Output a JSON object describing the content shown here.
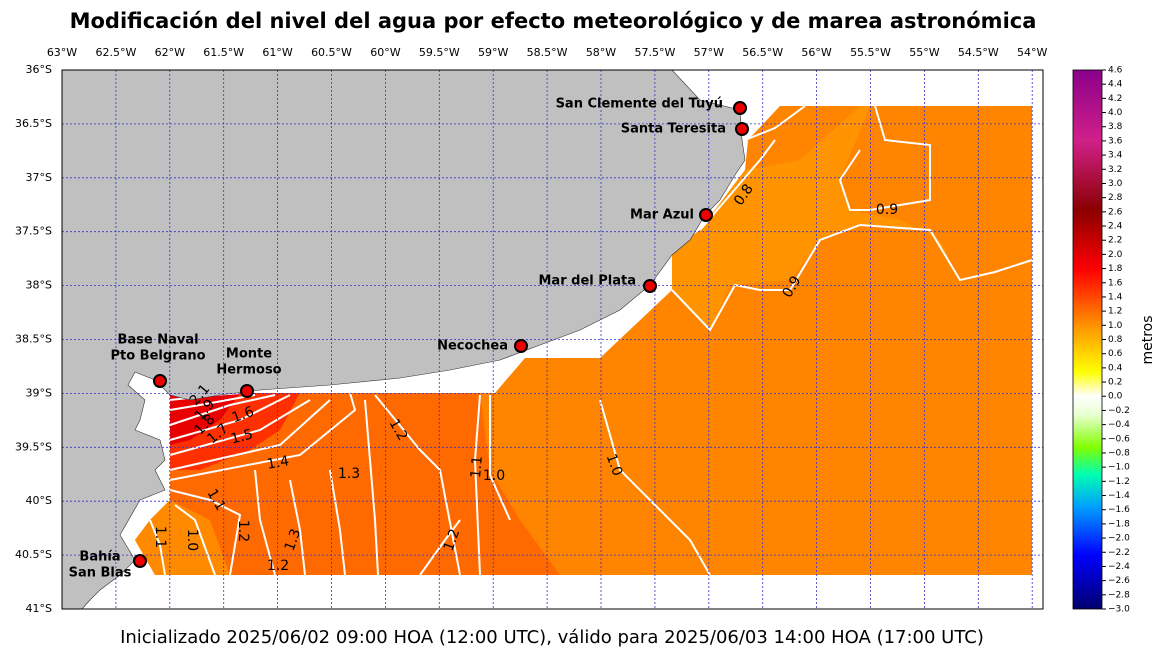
{
  "title": "Modificación del nivel del agua por efecto meteorológico y de marea astronómica",
  "lon_ticks": [
    "63°W",
    "62.5°W",
    "62°W",
    "61.5°W",
    "61°W",
    "60.5°W",
    "60°W",
    "59.5°W",
    "59°W",
    "58.5°W",
    "58°W",
    "57.5°W",
    "57°W",
    "56.5°W",
    "56°W",
    "55.5°W",
    "55°W",
    "54.5°W",
    "54°W"
  ],
  "lat_ticks": [
    "36°S",
    "36.5°S",
    "37°S",
    "37.5°S",
    "38°S",
    "38.5°S",
    "39°S",
    "39.5°S",
    "40°S",
    "40.5°S",
    "41°S"
  ],
  "stations": [
    [
      "San Clemente del Tuyú"
    ],
    [
      "Santa Teresita"
    ],
    [
      "Mar Azul"
    ],
    [
      "Mar del Plata"
    ],
    [
      "Necochea"
    ],
    [
      "Base Naval",
      "Pto Belgrano"
    ],
    [
      "Monte",
      "Hermoso"
    ],
    [
      "Bahía",
      "San Blas"
    ]
  ],
  "contour_labels": [
    "2.1",
    "1.9",
    "1.8",
    "1.7",
    "1.6",
    "1.5",
    "1.4",
    "1.3",
    "1.2",
    "1.1",
    "1.0",
    "1.0",
    "1.1",
    "1.1",
    "1.0",
    "1.2",
    "1.3",
    "1.2",
    "1.2",
    "0.8",
    "0.9",
    "0.9"
  ],
  "colorbar": {
    "label": "metros",
    "ticks": [
      "4.6",
      "4.4",
      "4.2",
      "4.0",
      "3.8",
      "3.6",
      "3.4",
      "3.2",
      "3.0",
      "2.8",
      "2.6",
      "2.4",
      "2.2",
      "2.0",
      "1.8",
      "1.6",
      "1.4",
      "1.2",
      "1.0",
      "0.8",
      "0.6",
      "0.4",
      "0.2",
      "0.0",
      "−0.2",
      "−0.4",
      "−0.6",
      "−0.8",
      "−1.0",
      "−1.2",
      "−1.4",
      "−1.6",
      "−1.8",
      "−2.0",
      "−2.2",
      "−2.4",
      "−2.6",
      "−2.8",
      "−3.0"
    ]
  },
  "footer": "Inicializado 2025/06/02 09:00 HOA (12:00 UTC), válido para 2025/06/03 14:00 HOA (17:00 UTC)"
}
